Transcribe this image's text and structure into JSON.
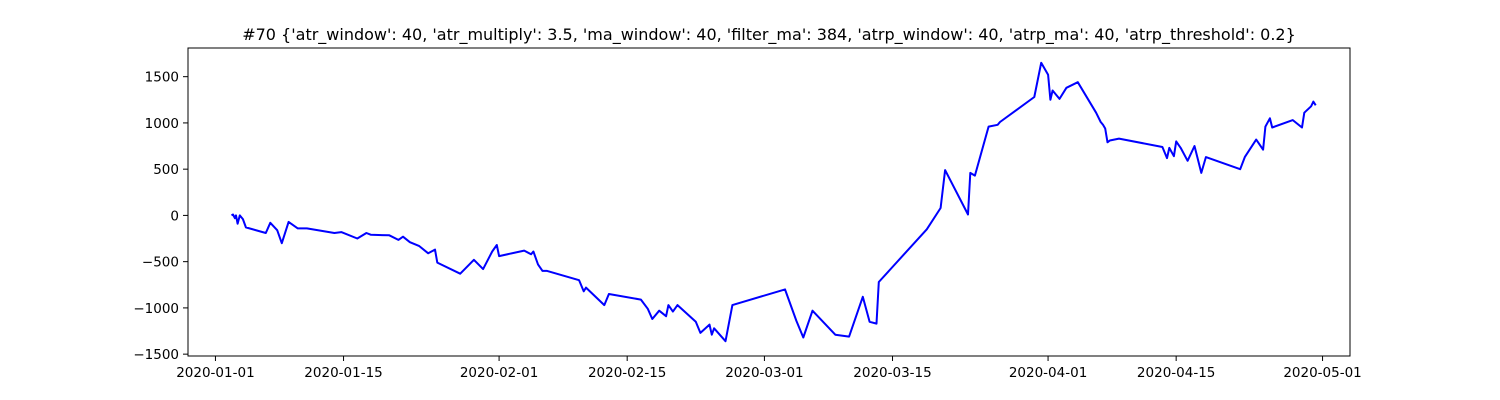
{
  "chart_data": {
    "type": "line",
    "title": "#70 {'atr_window': 40, 'atr_multiply': 3.5, 'ma_window': 40, 'filter_ma': 384, 'atrp_window': 40, 'atrp_ma': 40, 'atrp_threshold': 0.2}",
    "xlabel": "",
    "ylabel": "",
    "x_axis_type": "date",
    "xlim": [
      "2019-12-29",
      "2020-05-04"
    ],
    "ylim": [
      -1520,
      1810
    ],
    "grid": false,
    "line_color": "#0000ff",
    "x_ticks": [
      {
        "value": "2020-01-01",
        "label": "2020-01-01"
      },
      {
        "value": "2020-01-15",
        "label": "2020-01-15"
      },
      {
        "value": "2020-02-01",
        "label": "2020-02-01"
      },
      {
        "value": "2020-02-15",
        "label": "2020-02-15"
      },
      {
        "value": "2020-03-01",
        "label": "2020-03-01"
      },
      {
        "value": "2020-03-15",
        "label": "2020-03-15"
      },
      {
        "value": "2020-04-01",
        "label": "2020-04-01"
      },
      {
        "value": "2020-04-15",
        "label": "2020-04-15"
      },
      {
        "value": "2020-05-01",
        "label": "2020-05-01"
      }
    ],
    "y_ticks": [
      {
        "value": 1500,
        "label": "1500"
      },
      {
        "value": 1000,
        "label": "1000"
      },
      {
        "value": 500,
        "label": "500"
      },
      {
        "value": 0,
        "label": "0"
      },
      {
        "value": -500,
        "label": "−500"
      },
      {
        "value": -1000,
        "label": "−1000"
      },
      {
        "value": -1500,
        "label": "−1500"
      }
    ],
    "series": [
      {
        "points": [
          [
            "2020-01-02 18:00",
            0
          ],
          [
            "2020-01-02 22:00",
            10
          ],
          [
            "2020-01-03 03:00",
            -30
          ],
          [
            "2020-01-03 06:00",
            0
          ],
          [
            "2020-01-03 10:00",
            -90
          ],
          [
            "2020-01-03 16:00",
            0
          ],
          [
            "2020-01-04 00:00",
            -40
          ],
          [
            "2020-01-04 08:00",
            -130
          ],
          [
            "2020-01-06 12:00",
            -190
          ],
          [
            "2020-01-07 00:00",
            -80
          ],
          [
            "2020-01-07 18:00",
            -160
          ],
          [
            "2020-01-08 06:00",
            -300
          ],
          [
            "2020-01-09 00:00",
            -70
          ],
          [
            "2020-01-10 00:00",
            -140
          ],
          [
            "2020-01-11 00:00",
            -140
          ],
          [
            "2020-01-14 00:00",
            -190
          ],
          [
            "2020-01-14 18:00",
            -180
          ],
          [
            "2020-01-16 12:00",
            -250
          ],
          [
            "2020-01-17 12:00",
            -190
          ],
          [
            "2020-01-18 00:00",
            -210
          ],
          [
            "2020-01-20 00:00",
            -215
          ],
          [
            "2020-01-21 00:00",
            -265
          ],
          [
            "2020-01-21 12:00",
            -230
          ],
          [
            "2020-01-22 06:00",
            -290
          ],
          [
            "2020-01-23 06:00",
            -330
          ],
          [
            "2020-01-24 06:00",
            -410
          ],
          [
            "2020-01-25 00:00",
            -370
          ],
          [
            "2020-01-25 06:00",
            -510
          ],
          [
            "2020-01-27 18:00",
            -630
          ],
          [
            "2020-01-28 06:00",
            -580
          ],
          [
            "2020-01-29 06:00",
            -480
          ],
          [
            "2020-01-30 06:00",
            -580
          ],
          [
            "2020-01-31 06:00",
            -390
          ],
          [
            "2020-01-31 18:00",
            -320
          ],
          [
            "2020-02-01 00:00",
            -440
          ],
          [
            "2020-02-03 18:00",
            -380
          ],
          [
            "2020-02-04 12:00",
            -420
          ],
          [
            "2020-02-04 18:00",
            -390
          ],
          [
            "2020-02-05 06:00",
            -530
          ],
          [
            "2020-02-05 18:00",
            -600
          ],
          [
            "2020-02-06 06:00",
            -600
          ],
          [
            "2020-02-09 18:00",
            -700
          ],
          [
            "2020-02-10 06:00",
            -820
          ],
          [
            "2020-02-10 12:00",
            -780
          ],
          [
            "2020-02-12 12:00",
            -970
          ],
          [
            "2020-02-13 00:00",
            -850
          ],
          [
            "2020-02-16 12:00",
            -910
          ],
          [
            "2020-02-17 06:00",
            -1010
          ],
          [
            "2020-02-17 18:00",
            -1120
          ],
          [
            "2020-02-18 12:00",
            -1030
          ],
          [
            "2020-02-19 06:00",
            -1090
          ],
          [
            "2020-02-19 12:00",
            -970
          ],
          [
            "2020-02-20 00:00",
            -1040
          ],
          [
            "2020-02-20 12:00",
            -970
          ],
          [
            "2020-02-22 12:00",
            -1150
          ],
          [
            "2020-02-23 00:00",
            -1270
          ],
          [
            "2020-02-24 00:00",
            -1180
          ],
          [
            "2020-02-24 06:00",
            -1290
          ],
          [
            "2020-02-24 12:00",
            -1220
          ],
          [
            "2020-02-25 18:00",
            -1360
          ],
          [
            "2020-02-26 12:00",
            -970
          ],
          [
            "2020-03-03 06:00",
            -800
          ],
          [
            "2020-03-04 12:00",
            -1140
          ],
          [
            "2020-03-05 06:00",
            -1320
          ],
          [
            "2020-03-06 06:00",
            -1030
          ],
          [
            "2020-03-08 18:00",
            -1290
          ],
          [
            "2020-03-10 06:00",
            -1310
          ],
          [
            "2020-03-11 18:00",
            -880
          ],
          [
            "2020-03-12 12:00",
            -1150
          ],
          [
            "2020-03-13 06:00",
            -1170
          ],
          [
            "2020-03-13 12:00",
            -720
          ],
          [
            "2020-03-18 18:00",
            -150
          ],
          [
            "2020-03-20 06:00",
            80
          ],
          [
            "2020-03-20 18:00",
            490
          ],
          [
            "2020-03-23 06:00",
            10
          ],
          [
            "2020-03-23 12:00",
            460
          ],
          [
            "2020-03-24 00:00",
            430
          ],
          [
            "2020-03-25 12:00",
            960
          ],
          [
            "2020-03-26 12:00",
            980
          ],
          [
            "2020-03-26 18:00",
            1010
          ],
          [
            "2020-03-30 12:00",
            1280
          ],
          [
            "2020-03-31 06:00",
            1650
          ],
          [
            "2020-04-01 00:00",
            1520
          ],
          [
            "2020-04-01 06:00",
            1250
          ],
          [
            "2020-04-01 12:00",
            1350
          ],
          [
            "2020-04-02 06:00",
            1260
          ],
          [
            "2020-04-03 00:00",
            1380
          ],
          [
            "2020-04-04 06:00",
            1440
          ],
          [
            "2020-04-06 06:00",
            1110
          ],
          [
            "2020-04-06 18:00",
            1010
          ],
          [
            "2020-04-07 00:00",
            980
          ],
          [
            "2020-04-07 06:00",
            940
          ],
          [
            "2020-04-07 12:00",
            790
          ],
          [
            "2020-04-07 18:00",
            810
          ],
          [
            "2020-04-08 18:00",
            830
          ],
          [
            "2020-04-13 12:00",
            740
          ],
          [
            "2020-04-14 00:00",
            620
          ],
          [
            "2020-04-14 06:00",
            730
          ],
          [
            "2020-04-14 18:00",
            640
          ],
          [
            "2020-04-15 00:00",
            800
          ],
          [
            "2020-04-15 12:00",
            730
          ],
          [
            "2020-04-16 06:00",
            590
          ],
          [
            "2020-04-17 00:00",
            750
          ],
          [
            "2020-04-17 18:00",
            460
          ],
          [
            "2020-04-18 06:00",
            630
          ],
          [
            "2020-04-22 00:00",
            500
          ],
          [
            "2020-04-22 12:00",
            630
          ],
          [
            "2020-04-23 18:00",
            820
          ],
          [
            "2020-04-24 12:00",
            710
          ],
          [
            "2020-04-24 18:00",
            960
          ],
          [
            "2020-04-25 06:00",
            1050
          ],
          [
            "2020-04-25 12:00",
            950
          ],
          [
            "2020-04-27 18:00",
            1030
          ],
          [
            "2020-04-28 18:00",
            950
          ],
          [
            "2020-04-29 00:00",
            1110
          ],
          [
            "2020-04-29 18:00",
            1180
          ],
          [
            "2020-04-30 00:00",
            1230
          ],
          [
            "2020-04-30 06:00",
            1190
          ]
        ]
      }
    ]
  }
}
